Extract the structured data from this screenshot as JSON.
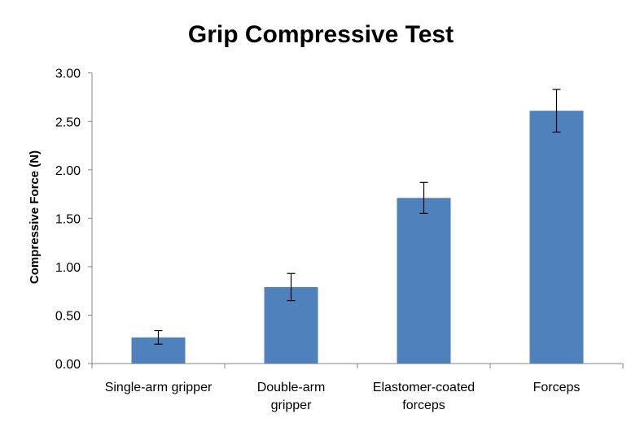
{
  "chart_data": {
    "type": "bar",
    "title": "Grip Compressive Test",
    "xlabel": "",
    "ylabel": "Compressive Force (N)",
    "ylim": [
      0,
      3
    ],
    "yticks": [
      "0.00",
      "0.50",
      "1.00",
      "1.50",
      "2.00",
      "2.50",
      "3.00"
    ],
    "grid": false,
    "categories": [
      [
        "Single-arm gripper"
      ],
      [
        "Double-arm",
        "gripper"
      ],
      [
        "Elastomer-coated",
        "forceps"
      ],
      [
        "Forceps"
      ]
    ],
    "values": [
      0.27,
      0.79,
      1.71,
      2.61
    ],
    "error_low": [
      0.2,
      0.65,
      1.55,
      2.39
    ],
    "error_high": [
      0.34,
      0.93,
      1.87,
      2.83
    ],
    "bar_color": "#4F81BD",
    "error_color": "#000000"
  }
}
